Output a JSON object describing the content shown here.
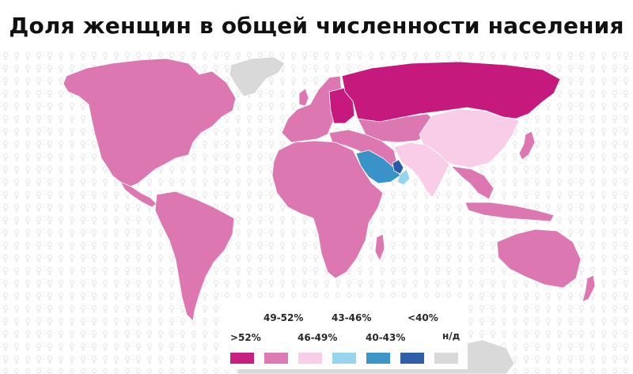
{
  "title": "Доля женщин в общей численности населения",
  "legend": {
    "items": [
      {
        "label": ">52%",
        "color": "#c6197e"
      },
      {
        "label": "49-52%",
        "color": "#dd77b2"
      },
      {
        "label": "46-49%",
        "color": "#f9cde8"
      },
      {
        "label": "43-46%",
        "color": "#96d3f0"
      },
      {
        "label": "40-43%",
        "color": "#3a93c8"
      },
      {
        "label": "<40%",
        "color": "#2b5ba8"
      },
      {
        "label": "н/д",
        "color": "#d9d9d9"
      }
    ]
  },
  "map_regions": [
    {
      "name": "North America",
      "category": "49-52%"
    },
    {
      "name": "Greenland",
      "category": "н/д"
    },
    {
      "name": "South America",
      "category": "49-52%"
    },
    {
      "name": "Europe",
      "category": "49-52%"
    },
    {
      "name": "Eastern Europe",
      "category": ">52%"
    },
    {
      "name": "Russia",
      "category": ">52%"
    },
    {
      "name": "Central Asia",
      "category": "49-52%"
    },
    {
      "name": "China",
      "category": "46-49%"
    },
    {
      "name": "India and South Asia",
      "category": "46-49%"
    },
    {
      "name": "Saudi Arabia",
      "category": "40-43%"
    },
    {
      "name": "UAE and Qatar",
      "category": "<40%"
    },
    {
      "name": "Oman",
      "category": "43-46%"
    },
    {
      "name": "Africa",
      "category": "49-52%"
    },
    {
      "name": "Southeast Asia",
      "category": "49-52%"
    },
    {
      "name": "Japan",
      "category": "49-52%"
    },
    {
      "name": "Australia",
      "category": "49-52%"
    },
    {
      "name": "Antarctica",
      "category": "н/д"
    }
  ]
}
